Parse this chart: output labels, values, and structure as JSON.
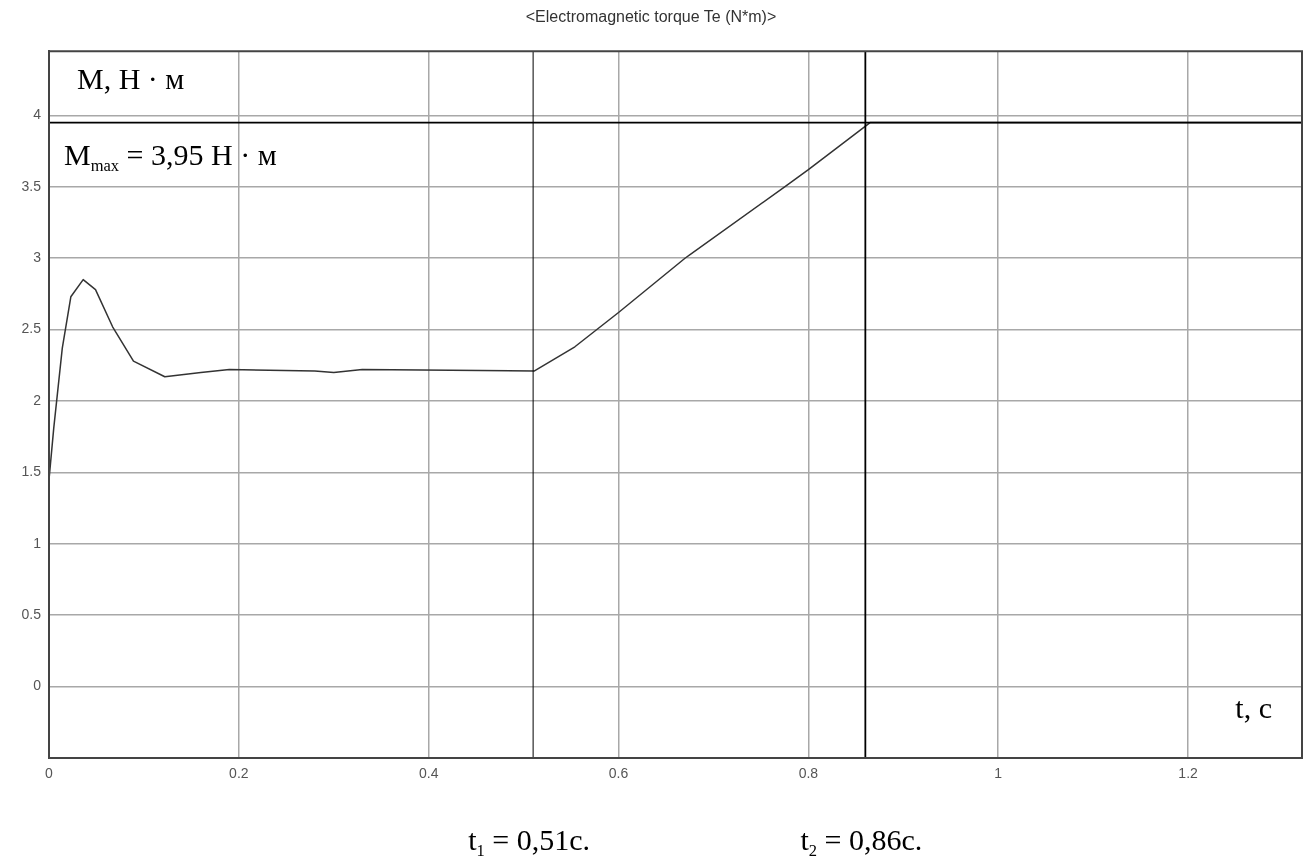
{
  "chart_data": {
    "type": "line",
    "title": "<Electromagnetic torque Te (N*m)>",
    "xlabel": "t, с",
    "ylabel": "М, Н · м",
    "x": [
      0,
      0.005,
      0.014,
      0.023,
      0.036,
      0.049,
      0.067,
      0.089,
      0.122,
      0.16,
      0.19,
      0.28,
      0.3,
      0.33,
      0.511,
      0.554,
      0.6,
      0.67,
      0.775,
      0.8,
      0.865,
      1.32
    ],
    "series": [
      {
        "color": "#333333",
        "values": [
          1.45,
          1.81,
          2.37,
          2.73,
          2.85,
          2.78,
          2.52,
          2.28,
          2.17,
          2.2,
          2.22,
          2.21,
          2.2,
          2.22,
          2.21,
          2.38,
          2.62,
          3.0,
          3.5,
          3.62,
          3.95,
          3.95
        ]
      }
    ],
    "xlim": [
      0,
      1.32
    ],
    "xticks": [
      0,
      0.2,
      0.4,
      0.6,
      0.8,
      1,
      1.2
    ],
    "ylim": [
      -0.5,
      4.45
    ],
    "yticks": [
      0,
      0.5,
      1,
      1.5,
      2,
      2.5,
      3,
      3.5,
      4
    ],
    "ref_lines": [
      {
        "axis": "y",
        "value": 3.95,
        "label": "М$_{max}$ = 3,95 Н · м",
        "color": "#000000"
      },
      {
        "axis": "x",
        "value": 0.51,
        "label": "t$_{1}$ = 0,51с.",
        "color": "#000000"
      },
      {
        "axis": "x",
        "value": 0.86,
        "label": "t$_{2}$ = 0,86с.",
        "color": "#000000"
      }
    ],
    "grid": true,
    "legend": false,
    "marker": "none",
    "line_style": "solid"
  }
}
